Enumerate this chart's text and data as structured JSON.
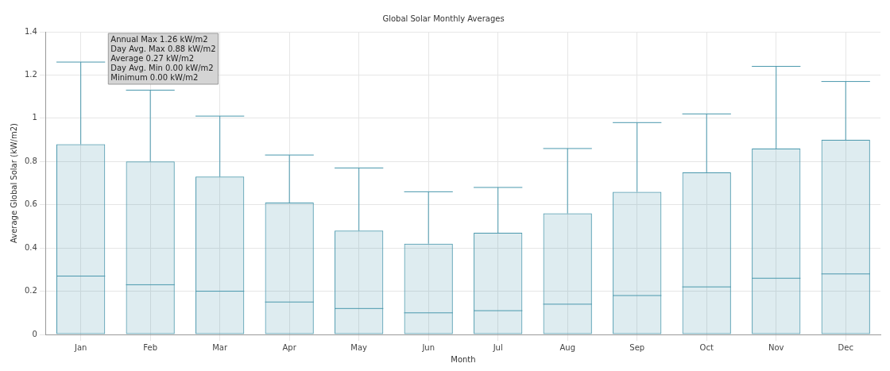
{
  "chart_data": {
    "type": "box",
    "title": "Global Solar Monthly Averages",
    "xlabel": "Month",
    "ylabel": "Average Global Solar (kW/m2)",
    "categories": [
      "Jan",
      "Feb",
      "Mar",
      "Apr",
      "May",
      "Jun",
      "Jul",
      "Aug",
      "Sep",
      "Oct",
      "Nov",
      "Dec"
    ],
    "series": [
      {
        "color": "#4a98ad",
        "boxes": [
          {
            "low": 0,
            "q1": 0,
            "median": 0.27,
            "q3": 0.88,
            "high": 1.26
          },
          {
            "low": 0,
            "q1": 0,
            "median": 0.23,
            "q3": 0.8,
            "high": 1.13
          },
          {
            "low": 0,
            "q1": 0,
            "median": 0.2,
            "q3": 0.73,
            "high": 1.01
          },
          {
            "low": 0,
            "q1": 0,
            "median": 0.15,
            "q3": 0.61,
            "high": 0.83
          },
          {
            "low": 0,
            "q1": 0,
            "median": 0.12,
            "q3": 0.48,
            "high": 0.77
          },
          {
            "low": 0,
            "q1": 0,
            "median": 0.1,
            "q3": 0.42,
            "high": 0.66
          },
          {
            "low": 0,
            "q1": 0,
            "median": 0.11,
            "q3": 0.47,
            "high": 0.68
          },
          {
            "low": 0,
            "q1": 0,
            "median": 0.14,
            "q3": 0.56,
            "high": 0.86
          },
          {
            "low": 0,
            "q1": 0,
            "median": 0.18,
            "q3": 0.66,
            "high": 0.98
          },
          {
            "low": 0,
            "q1": 0,
            "median": 0.22,
            "q3": 0.75,
            "high": 1.02
          },
          {
            "low": 0,
            "q1": 0,
            "median": 0.26,
            "q3": 0.86,
            "high": 1.24
          },
          {
            "low": 0,
            "q1": 0,
            "median": 0.28,
            "q3": 0.9,
            "high": 1.17
          }
        ]
      }
    ],
    "ylim": [
      0,
      1.4
    ],
    "yticks": [
      0,
      0.2,
      0.4,
      0.6,
      0.8,
      1,
      1.2,
      1.4
    ],
    "grid": true,
    "annotations": [
      "Annual Max 1.26 kW/m2",
      "Day Avg. Max 0.88 kW/m2",
      "Average 0.27 kW/m2",
      "Day Avg. Min 0.00 kW/m2",
      "Minimum 0.00 kW/m2"
    ]
  }
}
